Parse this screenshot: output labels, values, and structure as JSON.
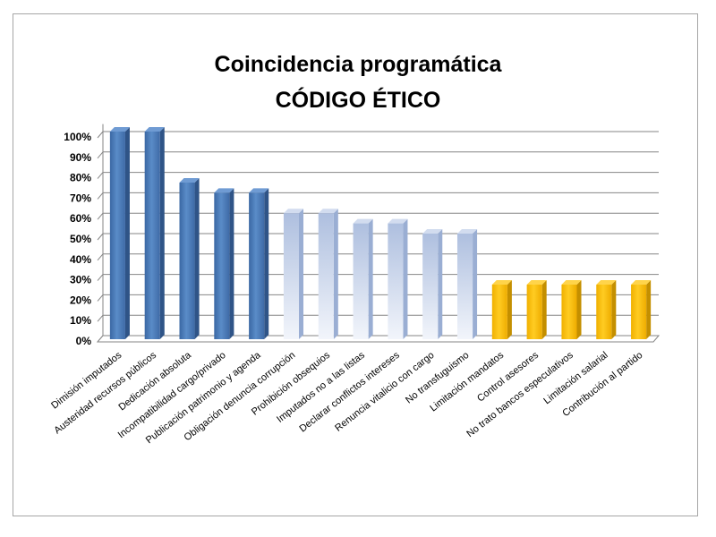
{
  "chart_data": {
    "type": "bar",
    "title": "Coincidencia programática",
    "subtitle": "CÓDIGO ÉTICO",
    "xlabel": "",
    "ylabel": "",
    "ylim": [
      0,
      100
    ],
    "ytick_format": "percent",
    "yticks": [
      "0%",
      "10%",
      "20%",
      "30%",
      "40%",
      "50%",
      "60%",
      "70%",
      "80%",
      "90%",
      "100%"
    ],
    "grid": true,
    "legend": "none",
    "style": "3d-column",
    "categories": [
      "Dimisión imputados",
      "Austeridad recursos públicos",
      "Dedicación absoluta",
      "Incompatibilidad cargo/privado",
      "Publicación patrimonio y agenda",
      "Obligación denuncia corrupción",
      "Prohibición obsequios",
      "Imputados no a las listas",
      "Declarar conflictos intereses",
      "Renuncia vitalicio con cargo",
      "No transfuguismo",
      "Limitación mandatos",
      "Control asesores",
      "No trato bancos especulativos",
      "Limitación salarial",
      "Contribución al partido"
    ],
    "values": [
      100,
      100,
      75,
      70,
      70,
      60,
      60,
      55,
      55,
      50,
      50,
      25,
      25,
      25,
      25,
      25
    ],
    "bar_colors": [
      "#4f81bd",
      "#4f81bd",
      "#4f81bd",
      "#4f81bd",
      "#4f81bd",
      "#c6d3ea",
      "#c6d3ea",
      "#c6d3ea",
      "#c6d3ea",
      "#c6d3ea",
      "#c6d3ea",
      "#ffc000",
      "#ffc000",
      "#ffc000",
      "#ffc000",
      "#ffc000"
    ]
  }
}
